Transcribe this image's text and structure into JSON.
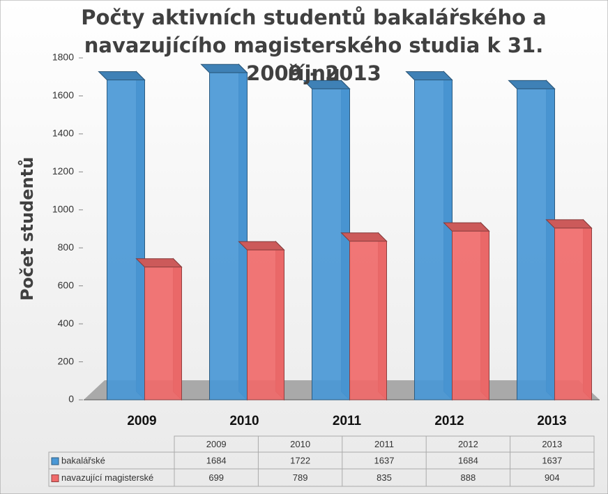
{
  "chart_data": {
    "type": "bar",
    "title": [
      "Počty aktivních studentů bakalářského a",
      "navazujícího magisterského studia k 31. říjnu",
      "2009 - 2013"
    ],
    "y_label": "Počet studentů",
    "categories": [
      "2009",
      "2010",
      "2011",
      "2012",
      "2013"
    ],
    "series": [
      {
        "name": "bakalářské",
        "color": "#4a98d6",
        "values": [
          1684,
          1722,
          1637,
          1684,
          1637
        ]
      },
      {
        "name": "navazující magisterské",
        "color": "#f06a6a",
        "values": [
          699,
          789,
          835,
          888,
          904
        ]
      }
    ],
    "ylim": [
      0,
      1800
    ],
    "yticks": [
      0,
      200,
      400,
      600,
      800,
      1000,
      1200,
      1400,
      1600,
      1800
    ],
    "grid": false
  }
}
